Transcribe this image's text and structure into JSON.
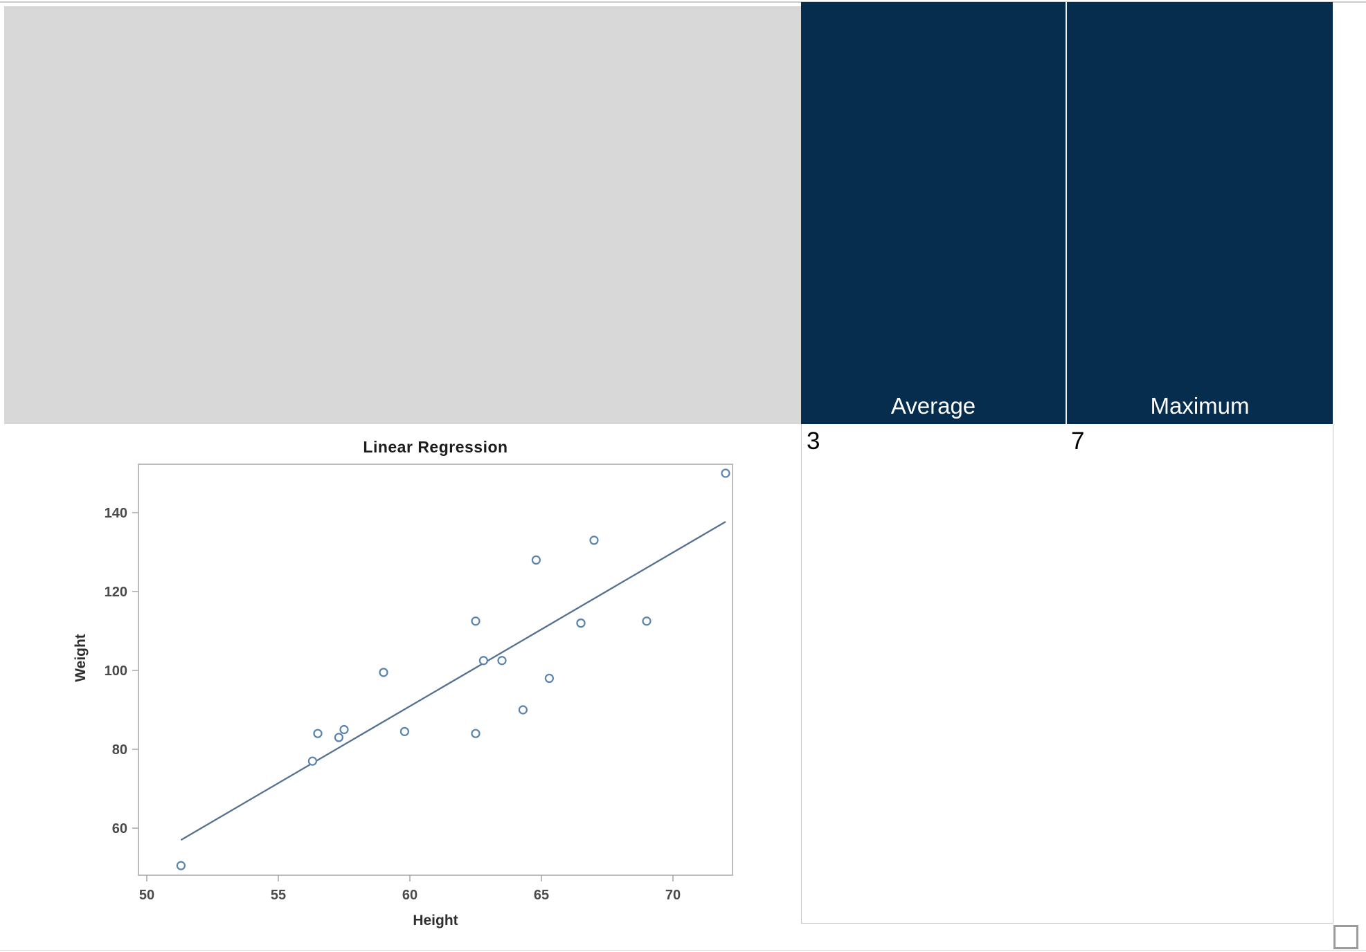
{
  "colors": {
    "header_bg": "#062c4e",
    "header_text": "#ffffff",
    "panel_gray": "#d8d8d8",
    "border_light": "#c9c9c9"
  },
  "summary_table": {
    "columns": [
      {
        "header": "Average",
        "value": "3"
      },
      {
        "header": "Maximum",
        "value": "7"
      }
    ]
  },
  "chart_data": {
    "type": "scatter",
    "title": "Linear Regression",
    "xlabel": "Height",
    "ylabel": "Weight",
    "x_ticks": [
      50,
      55,
      60,
      65,
      70
    ],
    "y_ticks": [
      60,
      80,
      100,
      120,
      140
    ],
    "xlim": [
      49.7,
      72.3
    ],
    "ylim": [
      48.0,
      152.4
    ],
    "grid": false,
    "legend": false,
    "points": [
      [
        51.3,
        50.5
      ],
      [
        56.3,
        77.0
      ],
      [
        56.5,
        84.0
      ],
      [
        57.3,
        83.0
      ],
      [
        57.5,
        85.0
      ],
      [
        59.0,
        99.5
      ],
      [
        59.8,
        84.5
      ],
      [
        62.5,
        84.0
      ],
      [
        62.5,
        112.5
      ],
      [
        62.8,
        102.5
      ],
      [
        63.5,
        102.5
      ],
      [
        64.3,
        90.0
      ],
      [
        64.8,
        128.0
      ],
      [
        65.3,
        98.0
      ],
      [
        66.5,
        112.0
      ],
      [
        66.5,
        112.0
      ],
      [
        67.0,
        133.0
      ],
      [
        69.0,
        112.5
      ],
      [
        72.0,
        150.0
      ]
    ],
    "regression_line": {
      "x1": 51.3,
      "y1": 57.0,
      "x2": 72.0,
      "y2": 137.7
    },
    "colors": {
      "marker": "#5b84ad",
      "regression_line": "#54718f",
      "frame": "#a6a6a6",
      "tick_text": "#4a4a4a"
    }
  }
}
